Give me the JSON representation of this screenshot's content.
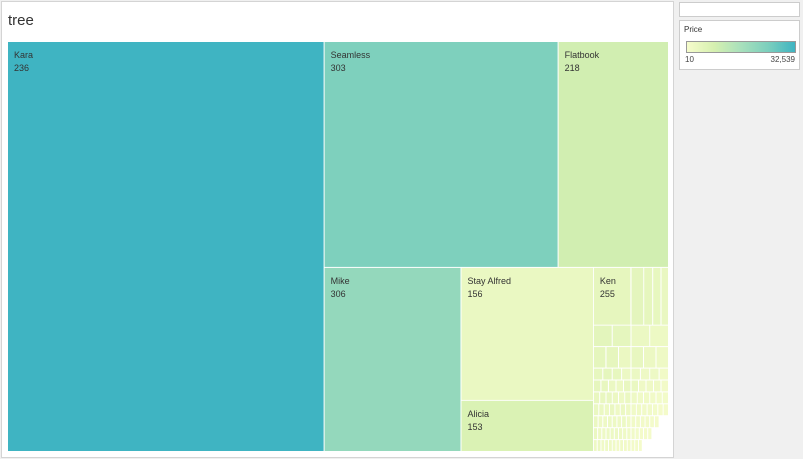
{
  "sheet": {
    "title": "tree"
  },
  "legend": {
    "title": "Price",
    "min_label": "10",
    "max_label": "32,539",
    "min": 10,
    "max": 32539,
    "color_low": "#f6fccc",
    "color_high": "#3fb4c2"
  },
  "chart_data": {
    "type": "treemap",
    "size_measure": "Count",
    "color_measure": "Price",
    "items": [
      {
        "label": "Kara",
        "value": 236,
        "size": 0.479,
        "price": 32539
      },
      {
        "label": "Seamless",
        "value": 303,
        "size": 0.195,
        "price": 24000
      },
      {
        "label": "Flatbook",
        "value": 218,
        "size": 0.092,
        "price": 9000
      },
      {
        "label": "Mike",
        "value": 306,
        "size": 0.093,
        "price": 20000
      },
      {
        "label": "Stay Alfred",
        "value": 156,
        "size": 0.065,
        "price": 3000
      },
      {
        "label": "Alicia",
        "value": 153,
        "size": 0.025,
        "price": 7000
      },
      {
        "label": "Ken",
        "value": 255,
        "size": 0.016,
        "price": 4000
      }
    ],
    "remainder": {
      "size": 0.035,
      "price_range": [
        10,
        6000
      ]
    }
  }
}
